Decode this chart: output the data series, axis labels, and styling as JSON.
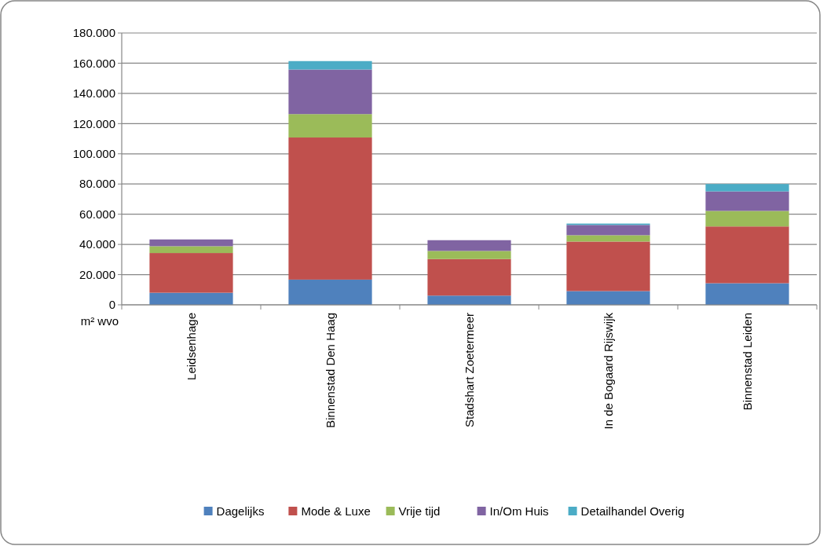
{
  "chart_data": {
    "type": "bar",
    "stacked": true,
    "ylabel": "m² wvo",
    "categories": [
      "Leidsenhage",
      "Binnenstad Den Haag",
      "Stadshart Zoetermeer",
      "In de Bogaard Rijswijk",
      "Binnenstad Leiden"
    ],
    "series": [
      {
        "name": "Dagelijks",
        "color": "#4f81bd",
        "values": [
          8000,
          16700,
          6100,
          9100,
          14300
        ]
      },
      {
        "name": "Mode & Luxe",
        "color": "#c0504d",
        "values": [
          26300,
          94100,
          24200,
          32800,
          37600
        ]
      },
      {
        "name": "Vrije tijd",
        "color": "#9bbb59",
        "values": [
          4500,
          15500,
          5400,
          4200,
          10300
        ]
      },
      {
        "name": "In/Om Huis",
        "color": "#8064a2",
        "values": [
          4500,
          29500,
          7100,
          6800,
          12900
        ]
      },
      {
        "name": "Detailhandel Overig",
        "color": "#4bacc6",
        "values": [
          0,
          5600,
          0,
          900,
          4900
        ]
      }
    ],
    "ylim": [
      0,
      180000
    ],
    "yticks": [
      {
        "value": 0,
        "label": "0"
      },
      {
        "value": 20000,
        "label": "20.000"
      },
      {
        "value": 40000,
        "label": "40.000"
      },
      {
        "value": 60000,
        "label": "60.000"
      },
      {
        "value": 80000,
        "label": "80.000"
      },
      {
        "value": 100000,
        "label": "100.000"
      },
      {
        "value": 120000,
        "label": "120.000"
      },
      {
        "value": 140000,
        "label": "140.000"
      },
      {
        "value": 160000,
        "label": "160.000"
      },
      {
        "value": 180000,
        "label": "180.000"
      }
    ],
    "grid": "y",
    "legend": "bottom"
  }
}
